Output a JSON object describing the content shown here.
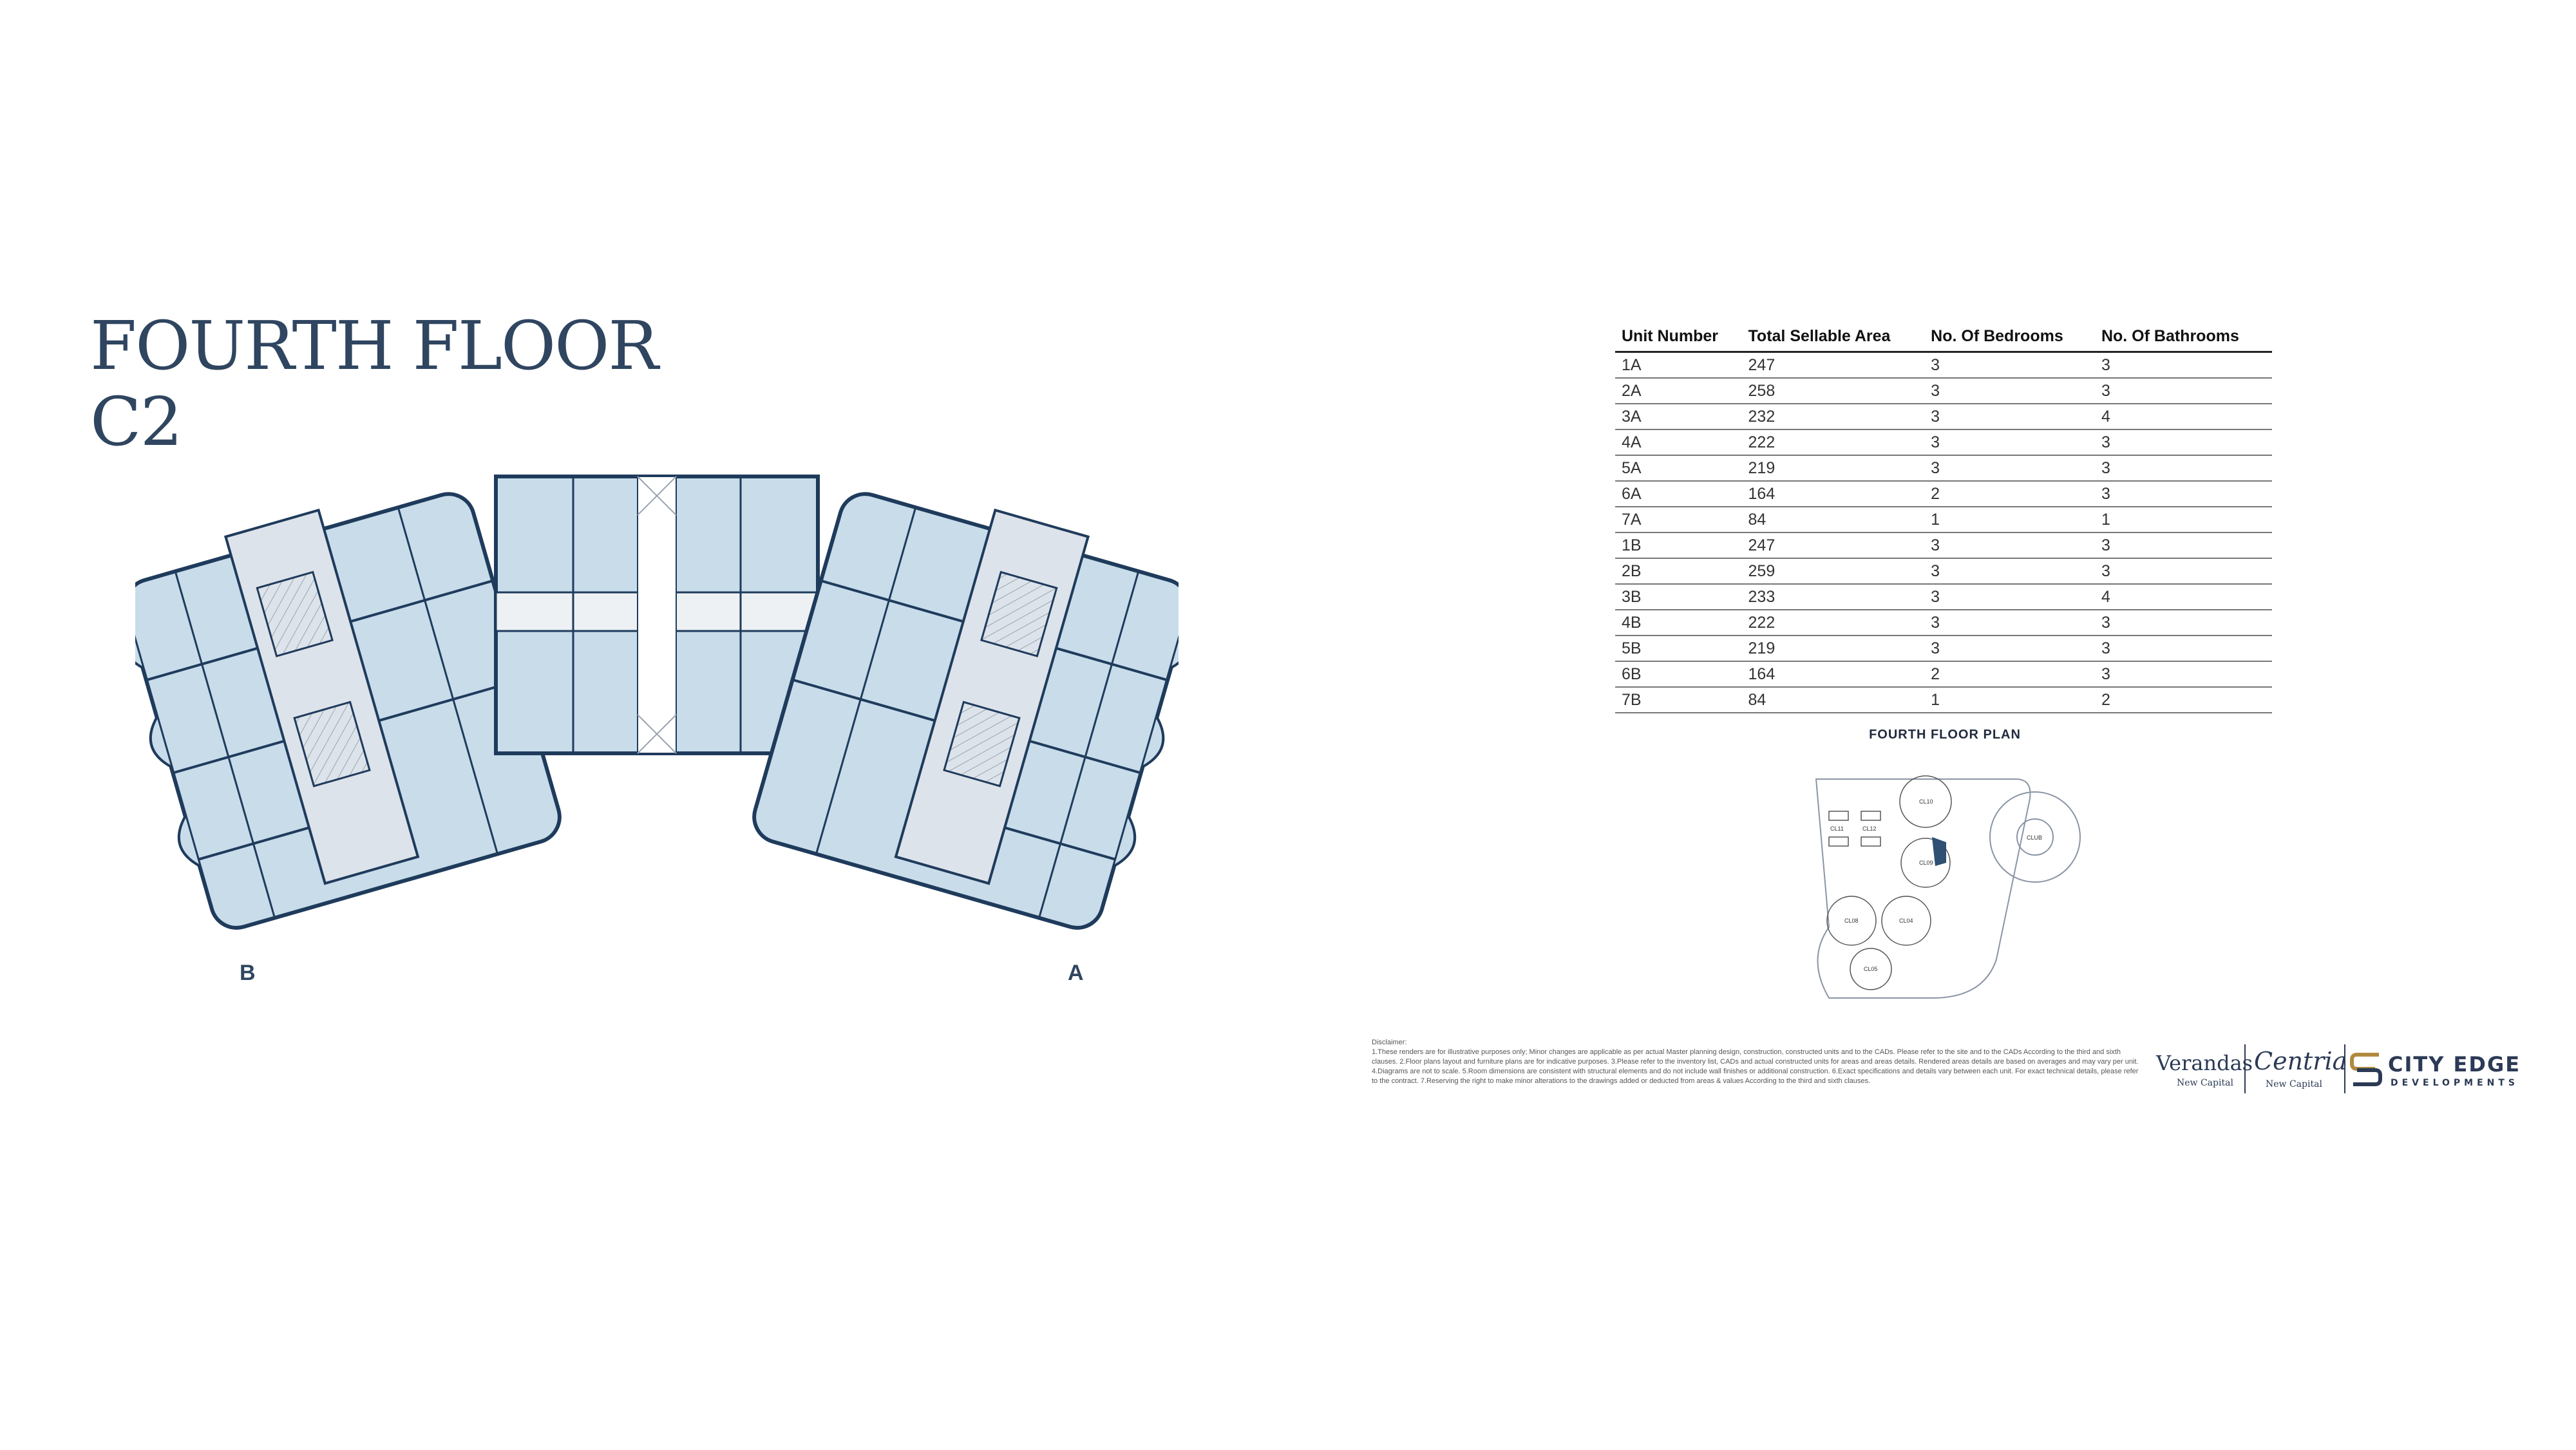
{
  "title": {
    "line1": "FOURTH FLOOR",
    "line2": "C2"
  },
  "floorplan": {
    "wing_labels": [
      "B",
      "A"
    ],
    "colors": {
      "unit_fill": "#c8dcea",
      "wall": "#1f3b5c",
      "core_fill": "#dde3ea",
      "walkway": "#eef1f4"
    }
  },
  "table": {
    "headers": [
      "Unit Number",
      "Total Sellable Area",
      "No. Of Bedrooms",
      "No. Of Bathrooms"
    ],
    "rows": [
      [
        "1A",
        "247",
        "3",
        "3"
      ],
      [
        "2A",
        "258",
        "3",
        "3"
      ],
      [
        "3A",
        "232",
        "3",
        "4"
      ],
      [
        "4A",
        "222",
        "3",
        "3"
      ],
      [
        "5A",
        "219",
        "3",
        "3"
      ],
      [
        "6A",
        "164",
        "2",
        "3"
      ],
      [
        "7A",
        "84",
        "1",
        "1"
      ],
      [
        "1B",
        "247",
        "3",
        "3"
      ],
      [
        "2B",
        "259",
        "3",
        "3"
      ],
      [
        "3B",
        "233",
        "3",
        "4"
      ],
      [
        "4B",
        "222",
        "3",
        "3"
      ],
      [
        "5B",
        "219",
        "3",
        "3"
      ],
      [
        "6B",
        "164",
        "2",
        "3"
      ],
      [
        "7B",
        "84",
        "1",
        "2"
      ]
    ]
  },
  "site_plan": {
    "title": "FOURTH FLOOR PLAN",
    "cluster_labels": [
      "CL11",
      "CL12",
      "CL10",
      "CL09",
      "CL08",
      "CL04",
      "CL05",
      "CLUB"
    ],
    "highlight_color": "#2f4f73"
  },
  "disclaimer": {
    "heading": "Disclaimer:",
    "text": "1.These renders are for illustrative purposes only; Minor changes are applicable as per actual Master planning design, construction, constructed units and to the CADs. Please refer to the site and to the CADs According to the third and sixth clauses. 2.Floor plans layout and furniture plans are for indicative purposes. 3.Please refer to the inventory list, CADs and actual constructed units for areas and areas details. Rendered areas details are based on averages and may vary per unit. 4.Diagrams are not to scale. 5.Room dimensions are consistent with structural elements and do not include wall finishes or additional construction. 6.Exact specifications and details vary between each unit. For exact technical details, please refer to the contract. 7.Reserving the right to make minor alterations to the drawings added or deducted from areas & values According to the third and sixth clauses."
  },
  "logos": {
    "verandas": "Verandas",
    "verandas_sub": "New Capital",
    "centria": "Centria",
    "centria_sub": "New Capital",
    "city_edge": "CITY EDGE",
    "developments": "DEVELOPMENTS",
    "brand_color": "#2b3a55",
    "accent_color": "#b08a3e"
  }
}
